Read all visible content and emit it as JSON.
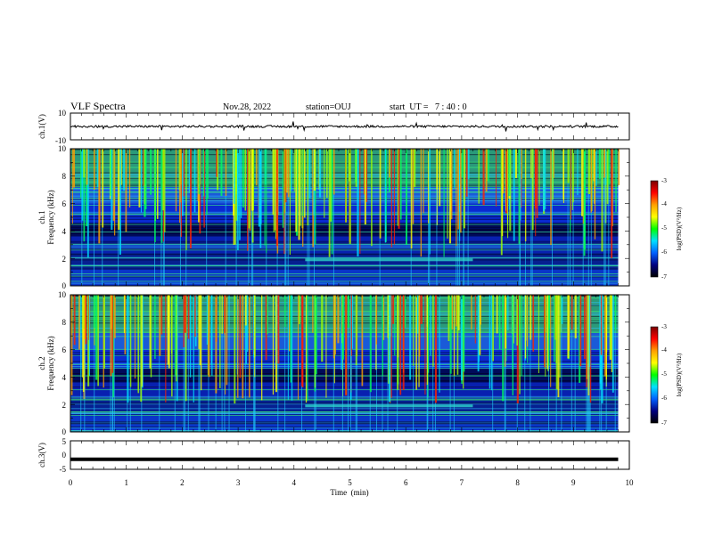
{
  "header": {
    "title": "VLF Spectra",
    "date": "Nov.28, 2022",
    "station": "station=OUJ",
    "start_ut": "start  UT =   7 : 40 : 0"
  },
  "colorbar": {
    "label": "log(PSD)(V²/Hz)",
    "ticks": [
      "-3",
      "-4",
      "-5",
      "-6",
      "-7"
    ],
    "colors": [
      "#7a0000",
      "#ff0000",
      "#ffa000",
      "#ffff00",
      "#00ff00",
      "#00e0ff",
      "#0060ff",
      "#000080",
      "#000000"
    ]
  },
  "chart_data": [
    {
      "id": "ch1_waveform",
      "type": "line",
      "ylabel": "ch.1(V)",
      "ylim": [
        -10,
        10
      ],
      "y_ticks": [
        "10",
        "-10"
      ],
      "xlim": [
        0,
        10
      ],
      "x_unit": "min",
      "baseline": 0
    },
    {
      "id": "ch1_spectrogram",
      "type": "heatmap",
      "ylabel": "ch.1\nFrequency (kHz)",
      "ylabel_line1": "ch.1",
      "ylabel_line2": "Frequency (kHz)",
      "ylim": [
        0,
        10
      ],
      "y_ticks": [
        "0",
        "2",
        "4",
        "6",
        "8",
        "10"
      ],
      "xlim": [
        0,
        10
      ],
      "data_end_min": 9.8,
      "feature_band_khz": [
        1.8,
        2.0
      ],
      "feature_end_min": 7.2
    },
    {
      "id": "ch2_spectrogram",
      "type": "heatmap",
      "ylabel_line1": "ch.2",
      "ylabel_line2": "Frequency (kHz)",
      "ylim": [
        0,
        10
      ],
      "y_ticks": [
        "0",
        "2",
        "4",
        "6",
        "8",
        "10"
      ],
      "xlim": [
        0,
        10
      ],
      "data_end_min": 9.8,
      "feature_band_khz": [
        1.8,
        2.0
      ],
      "feature_end_min": 7.2
    },
    {
      "id": "ch3_waveform",
      "type": "line",
      "ylabel": "ch.3(V)",
      "ylim": [
        -5,
        5
      ],
      "y_ticks": [
        "5",
        "0",
        "-5"
      ],
      "xlim": [
        0,
        10
      ],
      "baseline": -1.5,
      "xlabel": "Time  (min)",
      "x_ticks": [
        "0",
        "1",
        "2",
        "3",
        "4",
        "5",
        "6",
        "7",
        "8",
        "9",
        "10"
      ]
    }
  ]
}
